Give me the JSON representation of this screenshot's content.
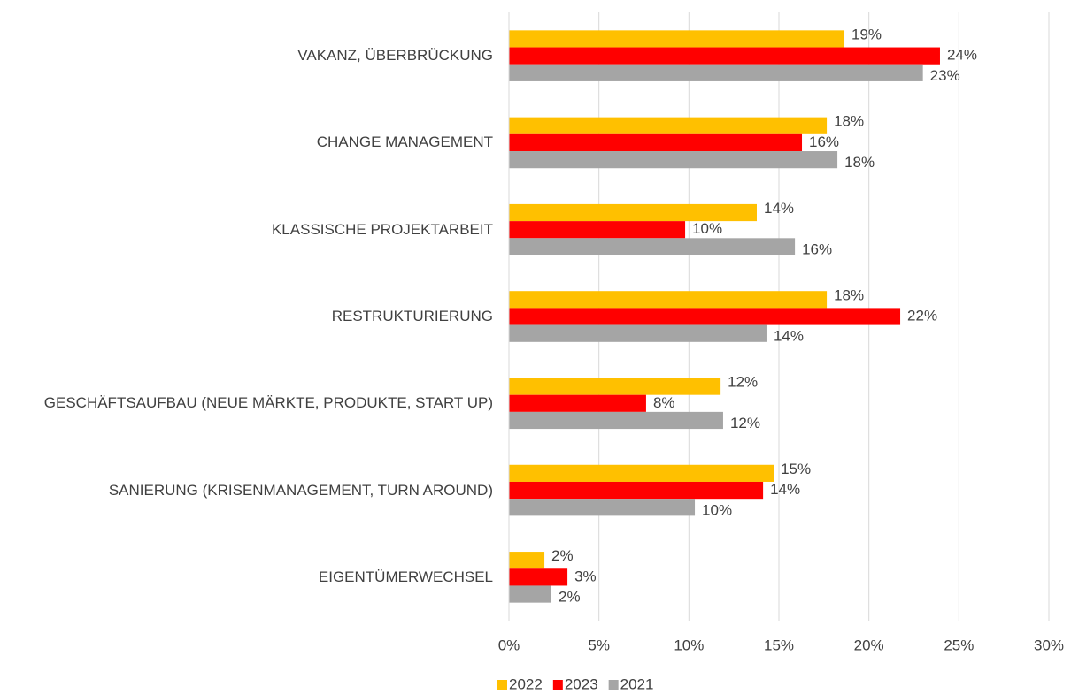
{
  "chart_data": {
    "type": "bar",
    "orientation": "horizontal",
    "categories": [
      "VAKANZ, ÜBERBRÜCKUNG",
      "CHANGE MANAGEMENT",
      "KLASSISCHE PROJEKTARBEIT",
      "RESTRUKTURIERUNG",
      "GESCHÄFTSAUFBAU (NEUE MÄRKTE,  PRODUKTE, START UP)",
      "SANIERUNG (KRISENMANAGEMENT, TURN AROUND)",
      "EIGENTÜMERWECHSEL"
    ],
    "series": [
      {
        "name": "2022",
        "color": "#ffc000",
        "values": [
          18.64,
          17.66,
          13.77,
          17.66,
          11.76,
          14.71,
          1.97
        ],
        "value_labels": [
          "19%",
          "18%",
          "14%",
          "18%",
          "12%",
          "15%",
          "2%"
        ]
      },
      {
        "name": "2023",
        "color": "#ff0000",
        "values": [
          23.95,
          16.28,
          9.79,
          21.74,
          7.62,
          14.12,
          3.25
        ],
        "value_labels": [
          "24%",
          "16%",
          "10%",
          "22%",
          "8%",
          "14%",
          "3%"
        ]
      },
      {
        "name": "2021",
        "color": "#a5a5a5",
        "values": [
          23.0,
          18.25,
          15.89,
          14.31,
          11.9,
          10.33,
          2.36
        ],
        "value_labels": [
          "23%",
          "18%",
          "16%",
          "14%",
          "12%",
          "10%",
          "2%"
        ]
      }
    ],
    "xlim": [
      0,
      30
    ],
    "xticks": [
      {
        "value": 0,
        "label": "0%"
      },
      {
        "value": 5,
        "label": "5%"
      },
      {
        "value": 10,
        "label": "10%"
      },
      {
        "value": 15,
        "label": "15%"
      },
      {
        "value": 20,
        "label": "20%"
      },
      {
        "value": 25,
        "label": "25%"
      },
      {
        "value": 30,
        "label": "30%"
      }
    ],
    "grid": true,
    "legend": "bottom"
  }
}
